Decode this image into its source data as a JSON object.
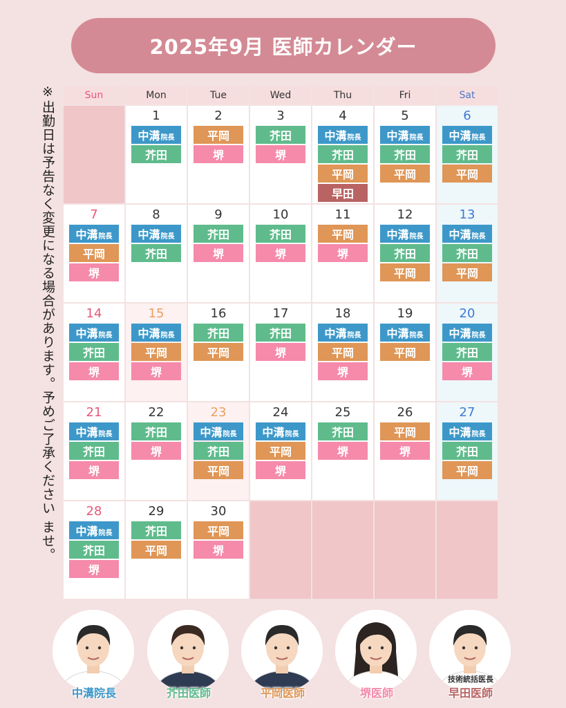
{
  "title": "2025年9月 医師カレンダー",
  "note": "※出勤日は予告なく変更になる場合があります。予めご了承ください ませ。",
  "weekdays": [
    "Sun",
    "Mon",
    "Tue",
    "Wed",
    "Thu",
    "Fri",
    "Sat"
  ],
  "doctor_names": {
    "nakamizo": "中溝",
    "akuta": "芥田",
    "hiraoka": "平岡",
    "sakai": "堺",
    "hayata": "早田"
  },
  "director_suffix": "院長",
  "colors": {
    "nakamizo": "#3d98c9",
    "akuta": "#5fbb8c",
    "hiraoka": "#df9656",
    "sakai": "#f58aab",
    "hayata": "#b96363",
    "title_bg": "#d48a94",
    "sunday_red": "#e8577a",
    "saturday_blue": "#3d7ad6",
    "holiday_orange": "#e8a060"
  },
  "weeks": [
    [
      null,
      {
        "day": "1",
        "doctors": [
          "nakamizo",
          "akuta"
        ]
      },
      {
        "day": "2",
        "doctors": [
          "hiraoka",
          "sakai"
        ]
      },
      {
        "day": "3",
        "doctors": [
          "akuta",
          "sakai"
        ]
      },
      {
        "day": "4",
        "doctors": [
          "nakamizo",
          "akuta",
          "hiraoka",
          "hayata"
        ]
      },
      {
        "day": "5",
        "doctors": [
          "nakamizo",
          "akuta",
          "hiraoka"
        ]
      },
      {
        "day": "6",
        "type": "sat",
        "doctors": [
          "nakamizo",
          "akuta",
          "hiraoka"
        ]
      }
    ],
    [
      {
        "day": "7",
        "type": "sun",
        "doctors": [
          "nakamizo",
          "hiraoka",
          "sakai"
        ]
      },
      {
        "day": "8",
        "doctors": [
          "nakamizo",
          "akuta"
        ]
      },
      {
        "day": "9",
        "doctors": [
          "akuta",
          "sakai"
        ]
      },
      {
        "day": "10",
        "doctors": [
          "akuta",
          "sakai"
        ]
      },
      {
        "day": "11",
        "doctors": [
          "hiraoka",
          "sakai"
        ]
      },
      {
        "day": "12",
        "doctors": [
          "nakamizo",
          "akuta",
          "hiraoka"
        ]
      },
      {
        "day": "13",
        "type": "sat",
        "doctors": [
          "nakamizo",
          "akuta",
          "hiraoka"
        ]
      }
    ],
    [
      {
        "day": "14",
        "type": "sun",
        "doctors": [
          "nakamizo",
          "akuta",
          "sakai"
        ]
      },
      {
        "day": "15",
        "type": "hol",
        "doctors": [
          "nakamizo",
          "hiraoka",
          "sakai"
        ]
      },
      {
        "day": "16",
        "doctors": [
          "akuta",
          "hiraoka"
        ]
      },
      {
        "day": "17",
        "doctors": [
          "akuta",
          "sakai"
        ]
      },
      {
        "day": "18",
        "doctors": [
          "nakamizo",
          "hiraoka",
          "sakai"
        ]
      },
      {
        "day": "19",
        "doctors": [
          "nakamizo",
          "hiraoka"
        ]
      },
      {
        "day": "20",
        "type": "sat",
        "doctors": [
          "nakamizo",
          "akuta",
          "sakai"
        ]
      }
    ],
    [
      {
        "day": "21",
        "type": "sun",
        "doctors": [
          "nakamizo",
          "akuta",
          "sakai"
        ]
      },
      {
        "day": "22",
        "doctors": [
          "akuta",
          "sakai"
        ]
      },
      {
        "day": "23",
        "type": "hol",
        "doctors": [
          "nakamizo",
          "akuta",
          "hiraoka"
        ]
      },
      {
        "day": "24",
        "doctors": [
          "nakamizo",
          "hiraoka",
          "sakai"
        ]
      },
      {
        "day": "25",
        "doctors": [
          "akuta",
          "sakai"
        ]
      },
      {
        "day": "26",
        "doctors": [
          "hiraoka",
          "sakai"
        ]
      },
      {
        "day": "27",
        "type": "sat",
        "doctors": [
          "nakamizo",
          "akuta",
          "hiraoka"
        ]
      }
    ],
    [
      {
        "day": "28",
        "type": "sun",
        "doctors": [
          "nakamizo",
          "akuta",
          "sakai"
        ]
      },
      {
        "day": "29",
        "doctors": [
          "akuta",
          "hiraoka"
        ]
      },
      {
        "day": "30",
        "doctors": [
          "hiraoka",
          "sakai"
        ]
      },
      null,
      null,
      null,
      null
    ]
  ],
  "footer": [
    {
      "key": "nakamizo",
      "name": "中溝院長",
      "color": "#3d98c9"
    },
    {
      "key": "akuta",
      "name": "芥田医師",
      "color": "#5fbb8c"
    },
    {
      "key": "hiraoka",
      "name": "平岡医師",
      "color": "#df9656"
    },
    {
      "key": "sakai",
      "name": "堺医師",
      "color": "#f58aab"
    },
    {
      "key": "hayata",
      "title": "技術統括医長",
      "name": "早田医師",
      "color": "#b96363"
    }
  ]
}
